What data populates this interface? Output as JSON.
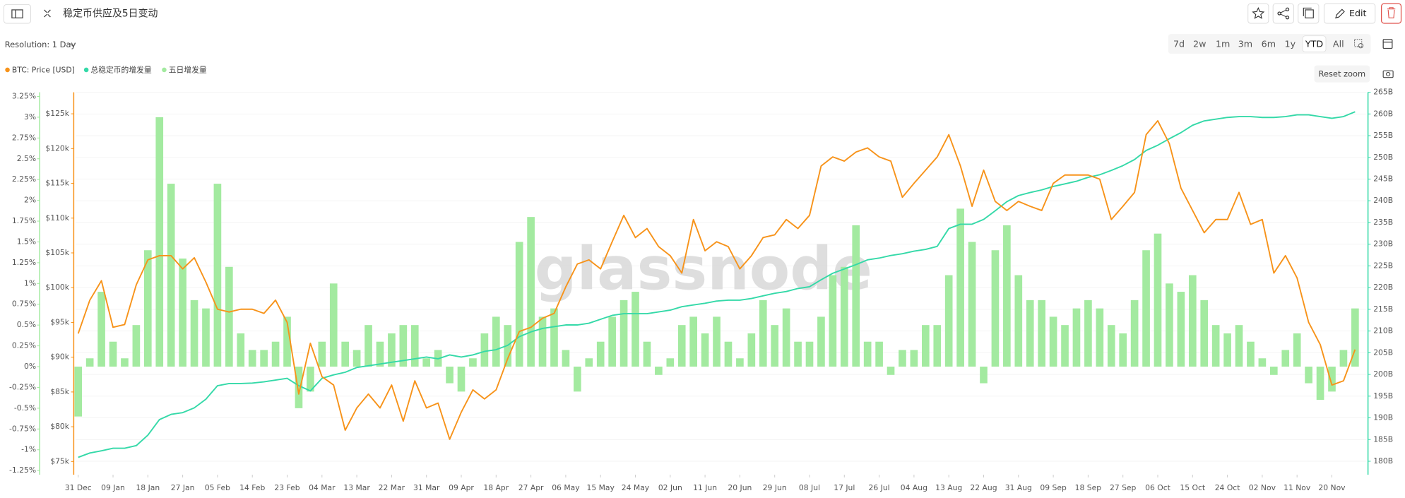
{
  "chart_data": {
    "type": "combo",
    "title": "稳定币供应及5日变动",
    "watermark": "glassnode",
    "x": [
      "31 Dec",
      "03 Jan",
      "06 Jan",
      "09 Jan",
      "12 Jan",
      "15 Jan",
      "18 Jan",
      "21 Jan",
      "24 Jan",
      "27 Jan",
      "30 Jan",
      "02 Feb",
      "05 Feb",
      "08 Feb",
      "11 Feb",
      "14 Feb",
      "17 Feb",
      "20 Feb",
      "23 Feb",
      "26 Feb",
      "01 Mar",
      "04 Mar",
      "07 Mar",
      "10 Mar",
      "13 Mar",
      "16 Mar",
      "19 Mar",
      "22 Mar",
      "25 Mar",
      "28 Mar",
      "31 Mar",
      "03 Apr",
      "06 Apr",
      "09 Apr",
      "12 Apr",
      "15 Apr",
      "18 Apr",
      "21 Apr",
      "24 Apr",
      "27 Apr",
      "30 Apr",
      "03 May",
      "06 May",
      "09 May",
      "12 May",
      "15 May",
      "18 May",
      "21 May",
      "24 May",
      "27 May",
      "30 May",
      "02 Jun",
      "05 Jun",
      "08 Jun",
      "11 Jun",
      "14 Jun",
      "17 Jun",
      "20 Jun",
      "23 Jun",
      "26 Jun",
      "29 Jun",
      "02 Jul",
      "05 Jul",
      "08 Jul",
      "11 Jul",
      "14 Jul",
      "17 Jul",
      "20 Jul",
      "23 Jul",
      "26 Jul",
      "29 Jul",
      "01 Aug",
      "04 Aug",
      "07 Aug",
      "10 Aug",
      "13 Aug",
      "16 Aug",
      "19 Aug",
      "22 Aug",
      "25 Aug",
      "28 Aug",
      "31 Aug",
      "03 Sep",
      "06 Sep",
      "09 Sep",
      "12 Sep",
      "15 Sep",
      "18 Sep",
      "21 Sep",
      "24 Sep",
      "27 Sep",
      "30 Sep",
      "03 Oct",
      "06 Oct",
      "09 Oct",
      "12 Oct",
      "15 Oct",
      "18 Oct",
      "21 Oct",
      "24 Oct",
      "27 Oct",
      "30 Oct",
      "02 Nov",
      "05 Nov",
      "08 Nov",
      "11 Nov",
      "14 Nov",
      "17 Nov",
      "20 Nov",
      "23 Nov",
      "26 Nov"
    ],
    "xticks": [
      "31 Dec",
      "09 Jan",
      "18 Jan",
      "27 Jan",
      "05 Feb",
      "14 Feb",
      "23 Feb",
      "04 Mar",
      "13 Mar",
      "22 Mar",
      "31 Mar",
      "09 Apr",
      "18 Apr",
      "27 Apr",
      "06 May",
      "15 May",
      "24 May",
      "02 Jun",
      "11 Jun",
      "20 Jun",
      "29 Jun",
      "08 Jul",
      "17 Jul",
      "26 Jul",
      "04 Aug",
      "13 Aug",
      "22 Aug",
      "31 Aug",
      "09 Sep",
      "18 Sep",
      "27 Sep",
      "06 Oct",
      "15 Oct",
      "24 Oct",
      "02 Nov",
      "11 Nov",
      "20 Nov"
    ],
    "series": [
      {
        "name": "BTC: Price [USD]",
        "type": "line",
        "axis": "y2",
        "color": "#f7931a",
        "values": [
          93400,
          98200,
          101000,
          94300,
          94700,
          100400,
          104000,
          104600,
          104600,
          102700,
          104300,
          100800,
          96900,
          96500,
          96900,
          96900,
          96300,
          98200,
          95000,
          84700,
          92000,
          87200,
          86000,
          79500,
          82700,
          84700,
          82700,
          86000,
          80800,
          86600,
          82700,
          83400,
          78200,
          82100,
          85300,
          84000,
          85300,
          89800,
          93700,
          94300,
          95600,
          96300,
          100100,
          103400,
          104000,
          102700,
          106600,
          110400,
          107200,
          108500,
          105900,
          104600,
          102100,
          109800,
          105300,
          106600,
          105900,
          102700,
          104600,
          107200,
          107600,
          109800,
          108500,
          110400,
          117500,
          118800,
          118200,
          119500,
          120100,
          118800,
          118200,
          113000,
          115000,
          116900,
          118800,
          122000,
          117500,
          111700,
          116900,
          112400,
          111100,
          112400,
          111700,
          111100,
          115000,
          116200,
          116200,
          116200,
          115600,
          109800,
          111700,
          113700,
          122000,
          124000,
          120700,
          114300,
          111100,
          107900,
          109800,
          109800,
          113700,
          109100,
          109800,
          102100,
          104600,
          101400,
          95000,
          91800,
          86000,
          86600,
          91100
        ]
      },
      {
        "name": "总稳定币的增发量",
        "type": "line",
        "axis": "y3",
        "color": "#34d9a8",
        "values": [
          180.9,
          181.9,
          182.4,
          183,
          183,
          183.6,
          186,
          189.6,
          190.8,
          191.2,
          192.3,
          194.3,
          197.4,
          197.9,
          197.9,
          198,
          198.3,
          198.7,
          199.1,
          197.4,
          196.2,
          199.1,
          199.9,
          200.5,
          201.6,
          202,
          202.4,
          202.8,
          203.2,
          203.6,
          204,
          203.6,
          204.5,
          204,
          204.5,
          205.3,
          205.7,
          206.7,
          208.7,
          209.8,
          210.6,
          211,
          211.4,
          211.4,
          211.8,
          212.7,
          213.6,
          214,
          214,
          214,
          214.4,
          214.8,
          215.6,
          216,
          216.4,
          216.9,
          217.1,
          217.1,
          217.5,
          218.1,
          218.7,
          219.1,
          219.8,
          220.2,
          221.8,
          223.3,
          224.3,
          225.3,
          226.4,
          226.8,
          227.4,
          227.8,
          228.4,
          228.8,
          229.5,
          233.6,
          234.6,
          234.6,
          235.7,
          237.7,
          239.8,
          241.2,
          241.9,
          242.5,
          243.3,
          243.9,
          244.5,
          245.4,
          246,
          247,
          248.1,
          249.5,
          251.6,
          252.8,
          254.3,
          255.7,
          257.4,
          258.4,
          258.8,
          259.2,
          259.4,
          259.4,
          259.2,
          259.2,
          259.4,
          259.8,
          259.8,
          259.4,
          259,
          259.4,
          260.5
        ]
      },
      {
        "name": "五日增发量",
        "type": "bar",
        "axis": "y",
        "color": "#a3eaa0",
        "values": [
          -0.6,
          0.1,
          0.9,
          0.3,
          0.1,
          0.5,
          1.4,
          3.0,
          2.2,
          1.3,
          0.8,
          0.7,
          2.2,
          1.2,
          0.4,
          0.2,
          0.2,
          0.3,
          0.6,
          -0.5,
          -0.3,
          0.3,
          1.0,
          0.3,
          0.2,
          0.5,
          0.3,
          0.4,
          0.5,
          0.5,
          0.1,
          0.2,
          -0.2,
          -0.3,
          0.1,
          0.4,
          0.6,
          0.5,
          1.5,
          1.8,
          0.6,
          0.7,
          0.2,
          -0.3,
          0.1,
          0.3,
          0.6,
          0.8,
          0.9,
          0.3,
          -0.1,
          0.1,
          0.5,
          0.6,
          0.4,
          0.6,
          0.3,
          0.1,
          0.4,
          0.8,
          0.5,
          0.7,
          0.3,
          0.3,
          0.6,
          1.1,
          1.2,
          1.7,
          0.3,
          0.3,
          -0.1,
          0.2,
          0.2,
          0.5,
          0.5,
          1.1,
          1.9,
          1.5,
          -0.2,
          1.4,
          1.7,
          1.1,
          0.8,
          0.8,
          0.6,
          0.5,
          0.7,
          0.8,
          0.7,
          0.5,
          0.4,
          0.8,
          1.4,
          1.6,
          1.0,
          0.9,
          1.1,
          0.8,
          0.5,
          0.4,
          0.5,
          0.3,
          0.1,
          -0.1,
          0.2,
          0.4,
          -0.2,
          -0.4,
          -0.3,
          0.2,
          0.7
        ]
      }
    ],
    "ylim": [
      -1.3,
      3.3
    ],
    "yticks": [
      {
        "value": 3.25,
        "label": "3.25%"
      },
      {
        "value": 3,
        "label": "3%"
      },
      {
        "value": 2.75,
        "label": "2.75%"
      },
      {
        "value": 2.5,
        "label": "2.5%"
      },
      {
        "value": 2.25,
        "label": "2.25%"
      },
      {
        "value": 2,
        "label": "2%"
      },
      {
        "value": 1.75,
        "label": "1.75%"
      },
      {
        "value": 1.5,
        "label": "1.5%"
      },
      {
        "value": 1.25,
        "label": "1.25%"
      },
      {
        "value": 1,
        "label": "1%"
      },
      {
        "value": 0.75,
        "label": "0.75%"
      },
      {
        "value": 0.5,
        "label": "0.5%"
      },
      {
        "value": 0.25,
        "label": "0.25%"
      },
      {
        "value": 0,
        "label": "0%"
      },
      {
        "value": -0.25,
        "label": "-0.25%"
      },
      {
        "value": -0.5,
        "label": "-0.5%"
      },
      {
        "value": -0.75,
        "label": "-0.75%"
      },
      {
        "value": -1,
        "label": "-1%"
      },
      {
        "value": -1.25,
        "label": "-1.25%"
      }
    ],
    "y2lim": [
      73100,
      128100
    ],
    "y2ticks": [
      {
        "value": 125000,
        "label": "$125k"
      },
      {
        "value": 120000,
        "label": "$120k"
      },
      {
        "value": 115000,
        "label": "$115k"
      },
      {
        "value": 110000,
        "label": "$110k"
      },
      {
        "value": 105000,
        "label": "$105k"
      },
      {
        "value": 100000,
        "label": "$100k"
      },
      {
        "value": 95000,
        "label": "$95k"
      },
      {
        "value": 90000,
        "label": "$90k"
      },
      {
        "value": 85000,
        "label": "$85k"
      },
      {
        "value": 80000,
        "label": "$80k"
      },
      {
        "value": 75000,
        "label": "$75k"
      }
    ],
    "y3lim": [
      176.9,
      265
    ],
    "y3ticks": [
      {
        "value": 265,
        "label": "265B"
      },
      {
        "value": 260,
        "label": "260B"
      },
      {
        "value": 255,
        "label": "255B"
      },
      {
        "value": 250,
        "label": "250B"
      },
      {
        "value": 245,
        "label": "245B"
      },
      {
        "value": 240,
        "label": "240B"
      },
      {
        "value": 235,
        "label": "235B"
      },
      {
        "value": 230,
        "label": "230B"
      },
      {
        "value": 225,
        "label": "225B"
      },
      {
        "value": 220,
        "label": "220B"
      },
      {
        "value": 215,
        "label": "215B"
      },
      {
        "value": 210,
        "label": "210B"
      },
      {
        "value": 205,
        "label": "205B"
      },
      {
        "value": 200,
        "label": "200B"
      },
      {
        "value": 195,
        "label": "195B"
      },
      {
        "value": 190,
        "label": "190B"
      },
      {
        "value": 185,
        "label": "185B"
      },
      {
        "value": 180,
        "label": "180B"
      }
    ],
    "grid": true
  },
  "controls": {
    "resolution": "Resolution: 1 Day",
    "ranges": [
      "7d",
      "2w",
      "1m",
      "3m",
      "6m",
      "1y",
      "YTD",
      "All"
    ],
    "active_range": "YTD",
    "reset_zoom": "Reset zoom",
    "edit": "Edit"
  }
}
